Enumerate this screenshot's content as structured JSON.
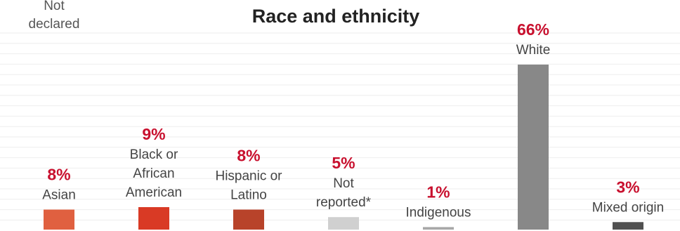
{
  "chart_data": {
    "type": "bar",
    "title": "Race and ethnicity",
    "legend_note": [
      "Not",
      "declared"
    ],
    "ylim": [
      0,
      70
    ],
    "grid": true,
    "categories": [
      {
        "label_lines": [
          "Asian"
        ],
        "value": 8,
        "value_label": "8%",
        "color": "#e06040"
      },
      {
        "label_lines": [
          "Black or",
          "African",
          "American"
        ],
        "value": 9,
        "value_label": "9%",
        "color": "#d93a25"
      },
      {
        "label_lines": [
          "Hispanic or",
          "Latino"
        ],
        "value": 8,
        "value_label": "8%",
        "color": "#b8432a"
      },
      {
        "label_lines": [
          "Not",
          "reported*"
        ],
        "value": 5,
        "value_label": "5%",
        "color": "#d0d0d0"
      },
      {
        "label_lines": [
          "Indigenous"
        ],
        "value": 1,
        "value_label": "1%",
        "color": "#a8a8a8"
      },
      {
        "label_lines": [
          "White"
        ],
        "value": 66,
        "value_label": "66%",
        "color": "#888888"
      },
      {
        "label_lines": [
          "Mixed origin"
        ],
        "value": 3,
        "value_label": "3%",
        "color": "#505050"
      }
    ]
  }
}
